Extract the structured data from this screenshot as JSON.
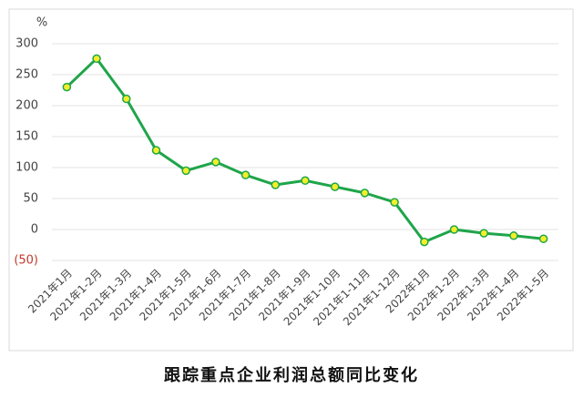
{
  "chart_data": {
    "type": "line",
    "title": "跟踪重点企业利润总额同比变化",
    "y_label": "%",
    "categories": [
      "2021年1月",
      "2021年1-2月",
      "2021年1-3月",
      "2021年1-4月",
      "2021年1-5月",
      "2021年1-6月",
      "2021年1-7月",
      "2021年1-8月",
      "2021年1-9月",
      "2021年1-10月",
      "2021年1-11月",
      "2021年1-12月",
      "2022年1月",
      "2022年1-2月",
      "2022年1-3月",
      "2022年1-4月",
      "2022年1-5月"
    ],
    "series": [
      {
        "name": "利润总额同比",
        "color": "#1fa54a",
        "marker_color": "#f2ef2a",
        "values": [
          230,
          276,
          211,
          128,
          95,
          109,
          88,
          72,
          79,
          69,
          59,
          44,
          -20,
          0,
          -6,
          -10,
          -15
        ]
      }
    ],
    "ylim": [
      -50,
      300
    ],
    "yticks": [
      {
        "value": -50,
        "label": "(50)"
      },
      0,
      50,
      100,
      150,
      200,
      250,
      300
    ],
    "negative_tick_color": "#c0392b",
    "grid": true
  }
}
